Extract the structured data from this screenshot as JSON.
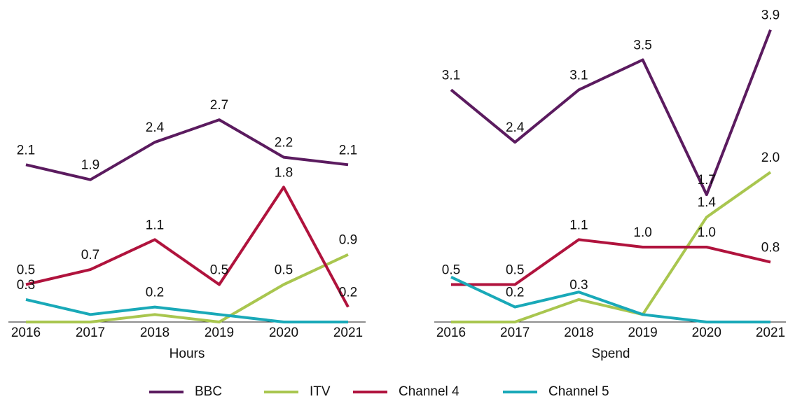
{
  "chart_data": [
    {
      "type": "line",
      "xlabel": "Hours",
      "categories": [
        "2016",
        "2017",
        "2018",
        "2019",
        "2020",
        "2021"
      ],
      "ylim": [
        0,
        4
      ],
      "series": [
        {
          "name": "BBC",
          "color": "#5b1b5f",
          "values": [
            2.1,
            1.9,
            2.4,
            2.7,
            2.2,
            2.1
          ],
          "value_labels": [
            "2.1",
            "1.9",
            "2.4",
            "2.7",
            "2.2",
            "2.1"
          ]
        },
        {
          "name": "ITV",
          "color": "#a9c64f",
          "values": [
            0,
            0,
            0.1,
            0,
            0.5,
            0.9
          ],
          "value_labels": [
            null,
            null,
            null,
            null,
            "0.5",
            "0.9"
          ]
        },
        {
          "name": "Channel 4",
          "color": "#b0133d",
          "values": [
            0.5,
            0.7,
            1.1,
            0.5,
            1.8,
            0.2
          ],
          "value_labels": [
            "0.5",
            "0.7",
            "1.1",
            "0.5",
            "1.8",
            "0.2"
          ]
        },
        {
          "name": "Channel 5",
          "color": "#19a9b8",
          "values": [
            0.3,
            0.1,
            0.2,
            0.1,
            0,
            0
          ],
          "value_labels": [
            "0.3",
            null,
            "0.2",
            null,
            null,
            null
          ]
        }
      ]
    },
    {
      "type": "line",
      "xlabel": "Spend",
      "categories": [
        "2016",
        "2017",
        "2018",
        "2019",
        "2020",
        "2021"
      ],
      "ylim": [
        0,
        4
      ],
      "series": [
        {
          "name": "BBC",
          "color": "#5b1b5f",
          "values": [
            3.1,
            2.4,
            3.1,
            3.5,
            1.7,
            3.9
          ],
          "value_labels": [
            "3.1",
            "2.4",
            "3.1",
            "3.5",
            "1.7",
            "3.9"
          ]
        },
        {
          "name": "ITV",
          "color": "#a9c64f",
          "values": [
            0,
            0,
            0.3,
            0.1,
            1.4,
            2.0
          ],
          "value_labels": [
            null,
            null,
            "0.3",
            null,
            "1.4",
            "2.0"
          ]
        },
        {
          "name": "Channel 4",
          "color": "#b0133d",
          "values": [
            0.5,
            0.5,
            1.1,
            1.0,
            1.0,
            0.8
          ],
          "value_labels": [
            "0.5",
            "0.5",
            "1.1",
            "1.0",
            "1.0",
            "0.8"
          ]
        },
        {
          "name": "Channel 5",
          "color": "#19a9b8",
          "values": [
            0.6,
            0.2,
            0.4,
            0.1,
            0,
            0
          ],
          "value_labels": [
            null,
            "0.2",
            null,
            null,
            null,
            null
          ]
        }
      ]
    }
  ]
}
